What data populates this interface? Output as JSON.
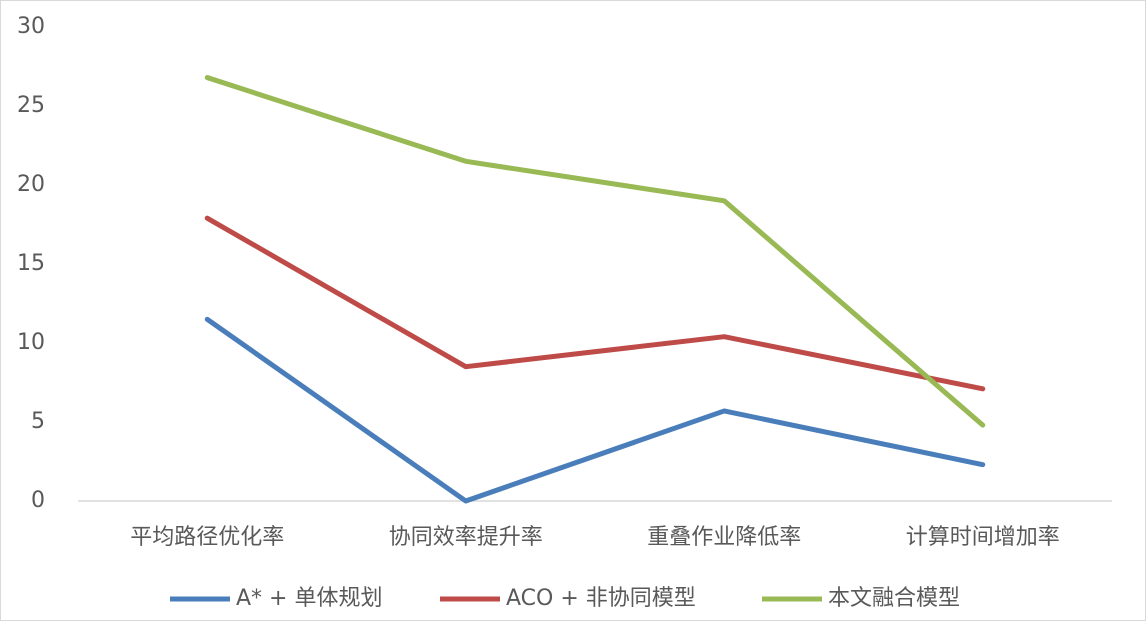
{
  "chart_data": {
    "type": "line",
    "categories": [
      "平均路径优化率",
      "协同效率提升率",
      "重叠作业降低率",
      "计算时间增加率"
    ],
    "series": [
      {
        "name": "A* + 单体规划",
        "color": "#4a7ebb",
        "values": [
          11.5,
          0,
          5.7,
          2.3
        ]
      },
      {
        "name": "ACO + 非协同模型",
        "color": "#be4b48",
        "values": [
          17.9,
          8.5,
          10.4,
          7.1
        ]
      },
      {
        "name": "本文融合模型",
        "color": "#98b954",
        "values": [
          26.8,
          21.5,
          19.0,
          4.8
        ]
      }
    ],
    "ylim": [
      0,
      30
    ],
    "yticks": [
      0,
      5,
      10,
      15,
      20,
      25,
      30
    ],
    "grid": false,
    "legend": "bottom"
  }
}
